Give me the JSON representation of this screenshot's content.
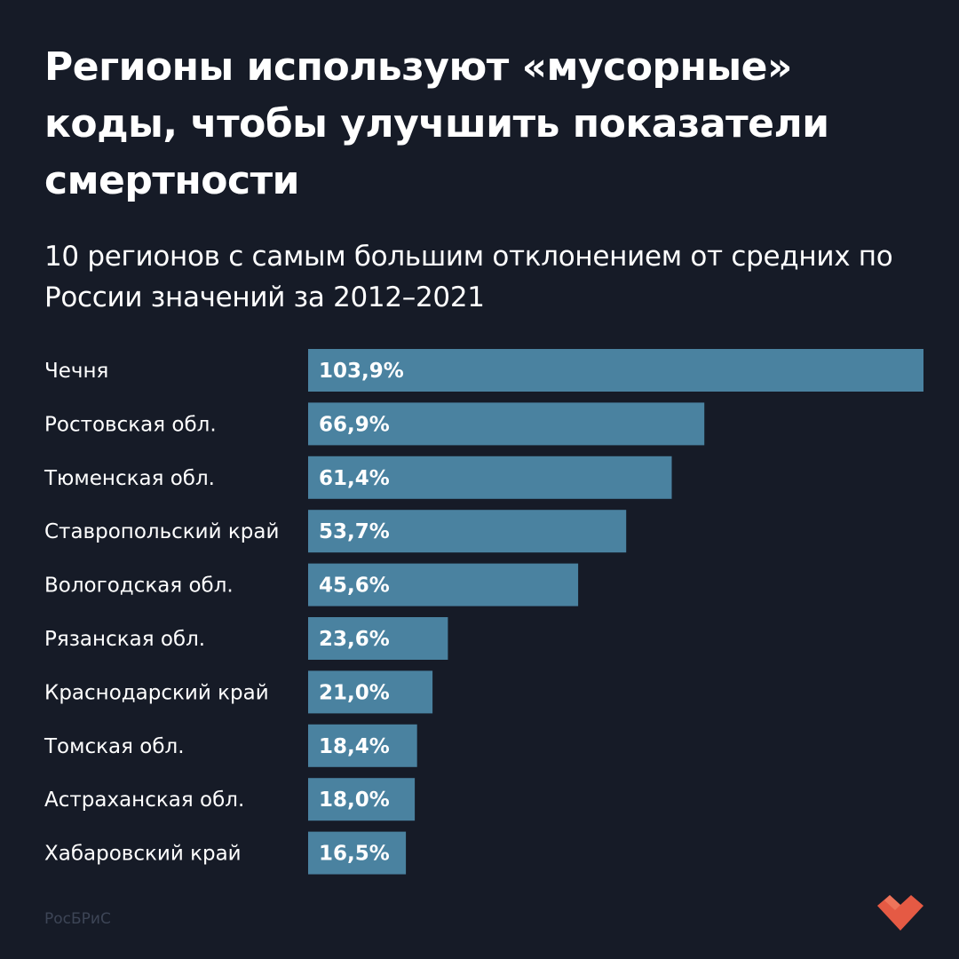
{
  "title": "Регионы используют «мусорные» коды, чтобы улучшить показатели смертности",
  "subtitle": "10 регионов с самым большим отклонением от средних по России значений за 2012–2021",
  "source": "РосБРиС",
  "colors": {
    "background": "#161b27",
    "bar": "#4a82a0",
    "text": "#ffffff",
    "source_text": "#3d4556",
    "logo": "#e55a44"
  },
  "chart_data": {
    "type": "bar",
    "orientation": "horizontal",
    "categories": [
      "Чечня",
      "Ростовская обл.",
      "Тюменская обл.",
      "Ставропольский край",
      "Вологодская обл.",
      "Рязанская обл.",
      "Краснодарский край",
      "Томская обл.",
      "Астраханская обл.",
      "Хабаровский край"
    ],
    "values": [
      103.9,
      66.9,
      61.4,
      53.7,
      45.6,
      23.6,
      21.0,
      18.4,
      18.0,
      16.5
    ],
    "value_labels": [
      "103,9%",
      "66,9%",
      "61,4%",
      "53,7%",
      "45,6%",
      "23,6%",
      "21,0%",
      "18,4%",
      "18,0%",
      "16,5%"
    ],
    "unit": "%",
    "xlim": [
      0,
      103.9
    ],
    "grid": false,
    "legend": "none"
  }
}
